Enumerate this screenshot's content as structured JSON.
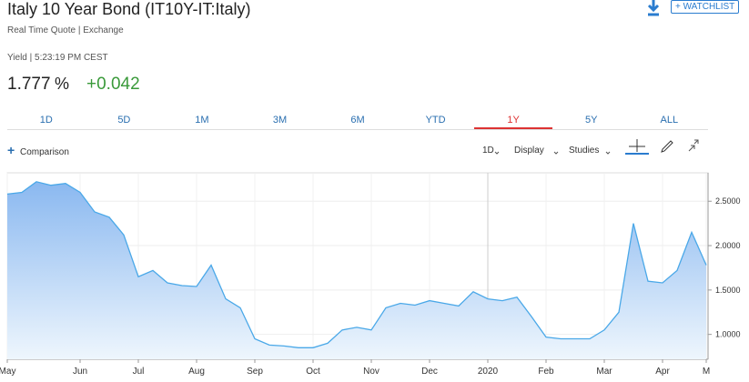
{
  "header": {
    "title": "Italy 10 Year Bond (IT10Y-IT:Italy)",
    "subtitle": "Real Time Quote | Exchange",
    "watchlist": "+ WATCHLIST",
    "quote_time": "Yield | 5:23:19 PM CEST",
    "price": "1.777",
    "price_unit": "%",
    "change": "+0.042"
  },
  "tabs": [
    "1D",
    "5D",
    "1M",
    "3M",
    "6M",
    "YTD",
    "1Y",
    "5Y",
    "ALL"
  ],
  "selected_tab": "1Y",
  "toolbar": {
    "comparison": "Comparison",
    "interval": "1D",
    "display": "Display",
    "studies": "Studies"
  },
  "chart_data": {
    "type": "area",
    "color": "#4aa8e8",
    "categories": [
      "May",
      null,
      null,
      null,
      null,
      "Jun",
      null,
      null,
      null,
      "Jul",
      null,
      null,
      null,
      "Aug",
      null,
      null,
      null,
      "Sep",
      null,
      null,
      null,
      "Oct",
      null,
      null,
      null,
      "Nov",
      null,
      null,
      null,
      "Dec",
      null,
      null,
      null,
      "2020",
      null,
      null,
      null,
      "Feb",
      null,
      null,
      null,
      "Mar",
      null,
      null,
      null,
      "Apr",
      null,
      null,
      "M"
    ],
    "values": [
      2.58,
      2.6,
      2.72,
      2.68,
      2.7,
      2.6,
      2.38,
      2.32,
      2.12,
      1.65,
      1.72,
      1.58,
      1.55,
      1.54,
      1.78,
      1.4,
      1.3,
      0.95,
      0.88,
      0.87,
      0.85,
      0.85,
      0.9,
      1.05,
      1.08,
      1.05,
      1.3,
      1.35,
      1.33,
      1.38,
      1.35,
      1.32,
      1.48,
      1.4,
      1.38,
      1.42,
      1.2,
      0.97,
      0.95,
      0.95,
      0.95,
      1.05,
      1.25,
      2.25,
      1.6,
      1.58,
      1.72,
      2.15,
      1.78
    ],
    "ylim": [
      0.72,
      2.82
    ],
    "yticks": [
      {
        "value": 1,
        "label": "1.0000"
      },
      {
        "value": 1.5,
        "label": "1.5000"
      },
      {
        "value": 2,
        "label": "2.0000"
      },
      {
        "value": 2.5,
        "label": "2.5000"
      }
    ],
    "grid": true
  }
}
